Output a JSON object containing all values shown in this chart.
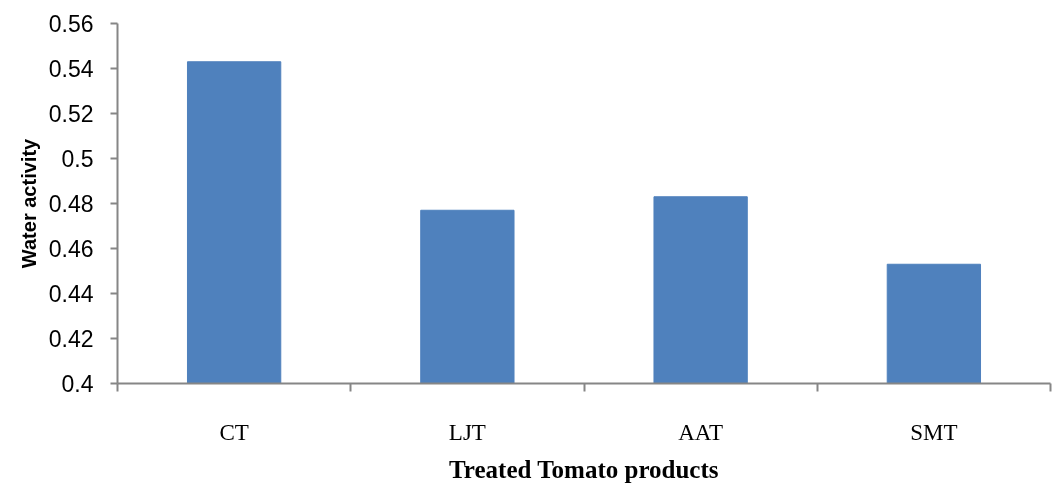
{
  "chart_data": {
    "type": "bar",
    "xlabel": "Treated Tomato products",
    "ylabel": "Water activity",
    "categories": [
      "CT",
      "LJT",
      "AAT",
      "SMT"
    ],
    "values": [
      0.543,
      0.477,
      0.483,
      0.453
    ],
    "color": "#4f81bd",
    "ylim": [
      0.4,
      0.56
    ],
    "yticks": [
      0.4,
      0.42,
      0.44,
      0.46,
      0.48,
      0.5,
      0.52,
      0.54,
      0.56
    ]
  }
}
